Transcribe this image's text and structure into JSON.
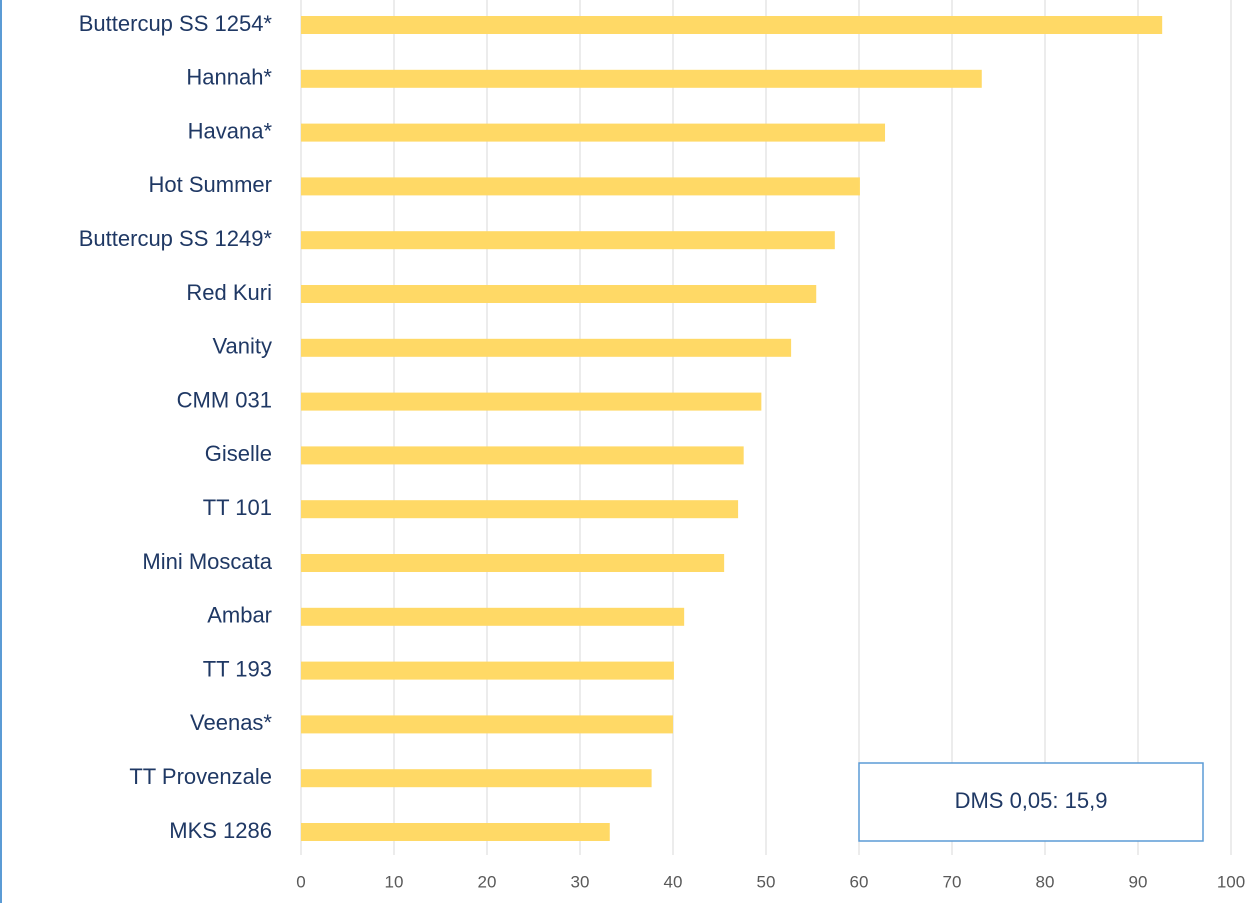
{
  "chart_data": {
    "type": "barh",
    "categories": [
      "Buttercup SS 1254*",
      "Hannah*",
      "Havana*",
      "Hot Summer",
      "Buttercup SS 1249*",
      "Red Kuri",
      "Vanity",
      "CMM 031",
      "Giselle",
      "TT 101",
      "Mini Moscata",
      "Ambar",
      "TT 193",
      "Veenas*",
      "TT Provenzale",
      "MKS 1286"
    ],
    "values": [
      92.6,
      73.2,
      62.8,
      60.1,
      57.4,
      55.4,
      52.7,
      49.5,
      47.6,
      47.0,
      45.5,
      41.2,
      40.1,
      40.0,
      37.7,
      33.2
    ],
    "color": "#ffd966",
    "xlim": [
      0,
      100
    ],
    "xticks": [
      0,
      10,
      20,
      30,
      40,
      50,
      60,
      70,
      80,
      90,
      100
    ],
    "grid": true,
    "annotation": "DMS 0,05: 15,9"
  }
}
